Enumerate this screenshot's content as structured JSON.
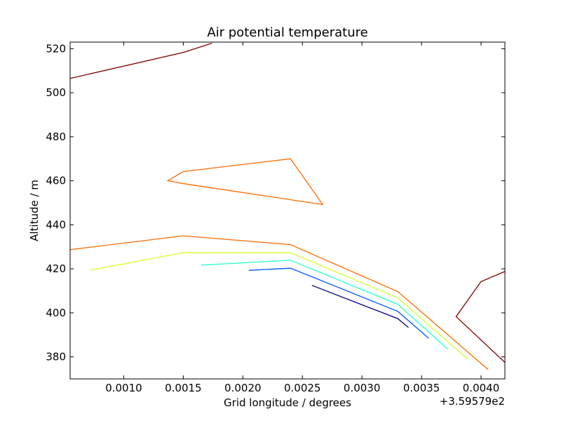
{
  "chart_data": {
    "type": "line",
    "title": "Air potential temperature",
    "xlabel": "Grid longitude / degrees",
    "ylabel": "Altitude / m",
    "x_offset_label": "+3.59579e2",
    "xlim": [
      0.00055,
      0.0042
    ],
    "ylim": [
      370,
      523
    ],
    "x_ticks": [
      0.001,
      0.0015,
      0.002,
      0.0025,
      0.003,
      0.0035,
      0.004
    ],
    "x_tick_labels": [
      "0.0010",
      "0.0015",
      "0.0020",
      "0.0025",
      "0.0030",
      "0.0035",
      "0.0040"
    ],
    "y_ticks": [
      380,
      400,
      420,
      440,
      460,
      480,
      500,
      520
    ],
    "y_tick_labels": [
      "380",
      "400",
      "420",
      "440",
      "460",
      "480",
      "500",
      "520"
    ],
    "grid": false,
    "series": [
      {
        "color": "#800000",
        "points": [
          [
            0.00055,
            506.5
          ],
          [
            0.0015,
            518.3
          ],
          [
            0.00174,
            522.5
          ]
        ]
      },
      {
        "color": "#ff6a00",
        "points": [
          [
            0.0015,
            464.2
          ],
          [
            0.0024,
            470.0
          ],
          [
            0.00267,
            449.2
          ],
          [
            0.0015,
            458.7
          ],
          [
            0.00137,
            460.0
          ],
          [
            0.0015,
            464.2
          ]
        ]
      },
      {
        "color": "#ff6a00",
        "points": [
          [
            0.00055,
            428.7
          ],
          [
            0.0015,
            435.0
          ],
          [
            0.0024,
            431.0
          ],
          [
            0.0033,
            409.7
          ],
          [
            0.00406,
            374.2
          ]
        ]
      },
      {
        "color": "#d4ff2a",
        "points": [
          [
            0.00072,
            419.4
          ],
          [
            0.0015,
            427.3
          ],
          [
            0.0024,
            427.3
          ],
          [
            0.0033,
            406.8
          ],
          [
            0.00389,
            378.9
          ]
        ]
      },
      {
        "color": "#2affd4",
        "points": [
          [
            0.00165,
            421.7
          ],
          [
            0.0024,
            423.9
          ],
          [
            0.0033,
            403.9
          ],
          [
            0.00372,
            383.5
          ]
        ]
      },
      {
        "color": "#0055ff",
        "points": [
          [
            0.00205,
            419.3
          ],
          [
            0.0024,
            420.3
          ],
          [
            0.0033,
            400.7
          ],
          [
            0.00356,
            388.5
          ]
        ]
      },
      {
        "color": "#00007f",
        "points": [
          [
            0.00258,
            412.5
          ],
          [
            0.0033,
            397.4
          ],
          [
            0.00339,
            393.4
          ]
        ]
      },
      {
        "color": "#800000",
        "points": [
          [
            0.0042,
            418.8
          ],
          [
            0.004,
            414.2
          ],
          [
            0.00379,
            398.3
          ],
          [
            0.0042,
            377.5
          ]
        ]
      }
    ]
  }
}
